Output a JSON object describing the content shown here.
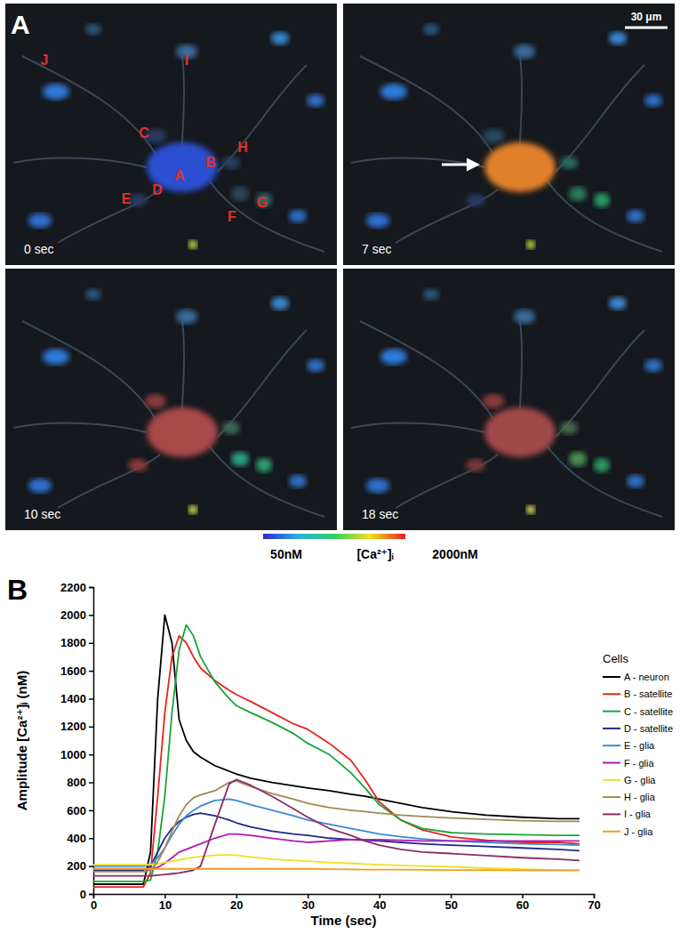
{
  "panel_a": {
    "label": "A",
    "frames": [
      {
        "time": "0 sec"
      },
      {
        "time": "7 sec"
      },
      {
        "time": "10 sec"
      },
      {
        "time": "18 sec"
      }
    ],
    "cell_labels": [
      "J",
      "I",
      "C",
      "A",
      "B",
      "H",
      "E",
      "D",
      "F",
      "G"
    ],
    "scale_bar": "30 μm"
  },
  "colorbar": {
    "min_label": "50nM",
    "title": "[Ca²⁺]ᵢ",
    "max_label": "2000nM"
  },
  "panel_b": {
    "label": "B"
  },
  "chart_data": {
    "type": "line",
    "xlabel": "Time (sec)",
    "ylabel": "Amplitude [Ca²⁺]ᵢ (nM)",
    "legend_title": "Cells",
    "legend": "right",
    "x": [
      0,
      4,
      7,
      8,
      9,
      10,
      11,
      12,
      13,
      14,
      15,
      17,
      19,
      20,
      22,
      25,
      28,
      30,
      33,
      36,
      38,
      40,
      43,
      46,
      50,
      55,
      60,
      65,
      68
    ],
    "xlim": [
      0,
      70
    ],
    "xticks": [
      0,
      10,
      20,
      30,
      40,
      50,
      60,
      70
    ],
    "ylim": [
      0,
      2200
    ],
    "yticks": [
      0,
      200,
      400,
      600,
      800,
      1000,
      1200,
      1400,
      1600,
      1800,
      2000,
      2200
    ],
    "series": [
      {
        "name": "A - neuron",
        "color": "#000000",
        "values": [
          70,
          70,
          70,
          300,
          1400,
          2000,
          1800,
          1250,
          1100,
          1020,
          980,
          920,
          880,
          860,
          830,
          800,
          775,
          760,
          740,
          715,
          700,
          680,
          650,
          620,
          590,
          565,
          550,
          540,
          540
        ]
      },
      {
        "name": "B - satellite",
        "color": "#e8241e",
        "values": [
          50,
          50,
          50,
          150,
          700,
          1300,
          1700,
          1850,
          1800,
          1700,
          1620,
          1530,
          1460,
          1430,
          1380,
          1300,
          1220,
          1180,
          1080,
          960,
          820,
          660,
          530,
          460,
          410,
          385,
          370,
          370,
          360
        ]
      },
      {
        "name": "C - satellite",
        "color": "#1aa33a",
        "values": [
          90,
          90,
          90,
          100,
          300,
          700,
          1300,
          1750,
          1930,
          1850,
          1700,
          1520,
          1400,
          1350,
          1300,
          1230,
          1150,
          1080,
          1000,
          870,
          760,
          640,
          530,
          470,
          440,
          430,
          425,
          420,
          420
        ]
      },
      {
        "name": "D - satellite",
        "color": "#1f2a8a",
        "values": [
          170,
          170,
          170,
          200,
          300,
          400,
          470,
          520,
          550,
          570,
          580,
          560,
          530,
          510,
          480,
          450,
          430,
          420,
          400,
          390,
          385,
          380,
          370,
          360,
          350,
          340,
          330,
          320,
          310
        ]
      },
      {
        "name": "E - glia",
        "color": "#3a8ad4",
        "values": [
          200,
          200,
          200,
          210,
          260,
          330,
          420,
          500,
          560,
          600,
          630,
          670,
          680,
          670,
          640,
          600,
          560,
          530,
          500,
          470,
          450,
          430,
          410,
          395,
          380,
          370,
          360,
          355,
          350
        ]
      },
      {
        "name": "F - glia",
        "color": "#b31ab3",
        "values": [
          180,
          180,
          180,
          180,
          190,
          220,
          260,
          300,
          320,
          340,
          360,
          400,
          430,
          430,
          420,
          400,
          380,
          370,
          380,
          390,
          390,
          390,
          385,
          380,
          380,
          380,
          380,
          380,
          380
        ]
      },
      {
        "name": "G - glia",
        "color": "#f0e020",
        "values": [
          210,
          210,
          210,
          210,
          215,
          225,
          235,
          245,
          255,
          262,
          268,
          278,
          280,
          278,
          265,
          250,
          240,
          235,
          225,
          220,
          215,
          210,
          205,
          200,
          195,
          185,
          178,
          172,
          170
        ]
      },
      {
        "name": "H - glia",
        "color": "#a08a50",
        "values": [
          160,
          160,
          160,
          170,
          230,
          330,
          450,
          560,
          640,
          690,
          710,
          740,
          800,
          810,
          770,
          720,
          680,
          650,
          620,
          600,
          590,
          580,
          565,
          555,
          545,
          535,
          525,
          520,
          520
        ]
      },
      {
        "name": "I - glia",
        "color": "#8b2a6b",
        "values": [
          130,
          130,
          130,
          130,
          135,
          140,
          145,
          150,
          160,
          170,
          200,
          500,
          790,
          820,
          780,
          700,
          610,
          550,
          470,
          420,
          380,
          350,
          320,
          300,
          290,
          275,
          260,
          250,
          240
        ]
      },
      {
        "name": "J - glia",
        "color": "#f59a1e",
        "values": [
          180,
          180,
          180,
          180,
          180,
          180,
          180,
          180,
          180,
          180,
          180,
          180,
          180,
          180,
          180,
          180,
          180,
          180,
          178,
          176,
          175,
          175,
          174,
          173,
          172,
          171,
          170,
          170,
          170
        ]
      }
    ]
  }
}
